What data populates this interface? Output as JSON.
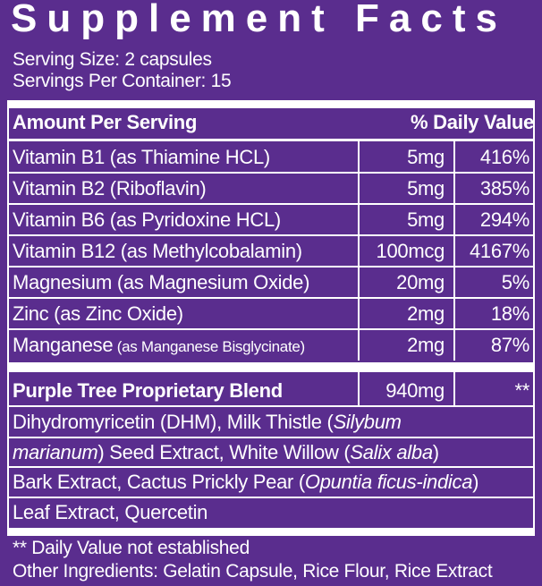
{
  "title": "Supplement Facts",
  "serving_size": "Serving Size: 2 capsules",
  "servings_per_container": "Servings Per Container: 15",
  "header": {
    "amount": "Amount Per Serving",
    "daily_value": "% Daily Value"
  },
  "rows": [
    {
      "name": "Vitamin B1 (as Thiamine HCL)",
      "amount": "5mg",
      "dv": "416%"
    },
    {
      "name": "Vitamin B2 (Riboflavin)",
      "amount": "5mg",
      "dv": "385%"
    },
    {
      "name": "Vitamin B6 (as Pyridoxine HCL)",
      "amount": "5mg",
      "dv": "294%"
    },
    {
      "name": "Vitamin B12 (as Methylcobalamin)",
      "amount": "100mcg",
      "dv": "4167%"
    },
    {
      "name": "Magnesium (as Magnesium Oxide)",
      "amount": "20mg",
      "dv": "5%"
    },
    {
      "name": "Zinc (as Zinc Oxide)",
      "amount": "2mg",
      "dv": "18%"
    },
    {
      "name": "Manganese",
      "detail": "(as Manganese Bisglycinate)",
      "amount": "2mg",
      "dv": "87%"
    }
  ],
  "blend": {
    "name": "Purple Tree Proprietary Blend",
    "amount": "940mg",
    "dv": "**",
    "ingredient_lines": [
      [
        {
          "text": "Dihydromyricetin (DHM), Milk Thistle ("
        },
        {
          "text": "Silybum",
          "italic": true
        }
      ],
      [
        {
          "text": "marianum",
          "italic": true
        },
        {
          "text": ") Seed Extract, White Willow ("
        },
        {
          "text": "Salix alba",
          "italic": true
        },
        {
          "text": ")"
        }
      ],
      [
        {
          "text": "Bark Extract, Cactus Prickly Pear ("
        },
        {
          "text": "Opuntia ficus-indica",
          "italic": true
        },
        {
          "text": ")"
        }
      ],
      [
        {
          "text": "Leaf Extract, Quercetin"
        }
      ]
    ]
  },
  "footnote": "** Daily Value not established",
  "other_ingredients": "Other Ingredients: Gelatin Capsule, Rice Flour, Rice Extract"
}
